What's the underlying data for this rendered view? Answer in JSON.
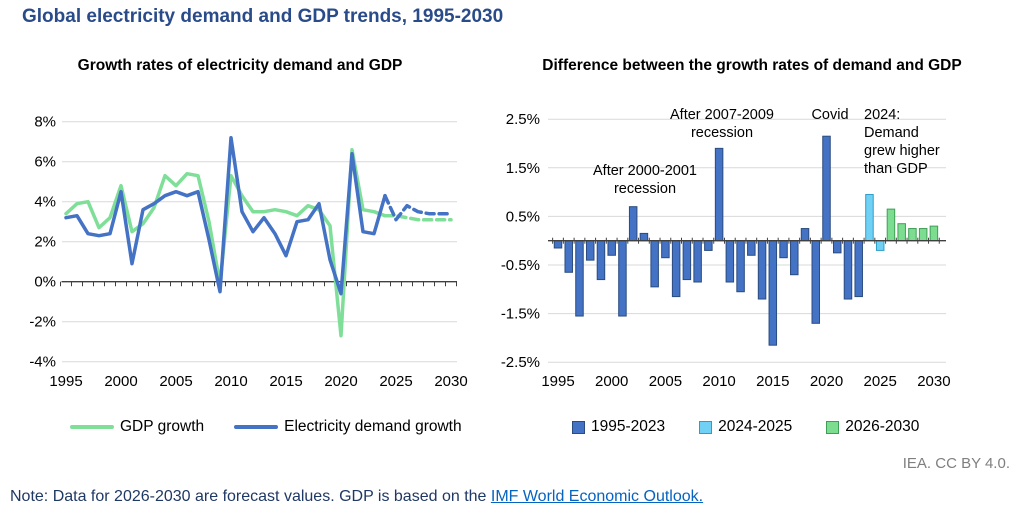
{
  "page": {
    "title": "Global electricity demand and GDP trends, 1995-2030",
    "attribution": "IEA. CC BY 4.0.",
    "note_prefix": "Note: Data for 2026-2030 are forecast values. GDP is based on the ",
    "note_link": "IMF World Economic Outlook."
  },
  "colors": {
    "title": "#2A4B8A",
    "text": "#000000",
    "grid": "#D9D9D9",
    "axis": "#404040",
    "gdp_line": "#7FDF99",
    "demand_line": "#4472C4",
    "bar_past": "#4472C4",
    "bar_past_border": "#2B4C7E",
    "bar_estimate": "#70D1F5",
    "bar_estimate_border": "#2D9EC7",
    "bar_forecast": "#7CDD90",
    "bar_forecast_border": "#3F9E55",
    "attribution": "#7F7F7F",
    "note": "#1F3864",
    "link": "#0563C1"
  },
  "left_chart": {
    "subtitle": "Growth rates of electricity demand and GDP",
    "legend": [
      {
        "label": "GDP growth",
        "color_key": "gdp_line"
      },
      {
        "label": "Electricity demand growth",
        "color_key": "demand_line"
      }
    ],
    "chart_data": {
      "type": "line",
      "x": [
        1995,
        1996,
        1997,
        1998,
        1999,
        2000,
        2001,
        2002,
        2003,
        2004,
        2005,
        2006,
        2007,
        2008,
        2009,
        2010,
        2011,
        2012,
        2013,
        2014,
        2015,
        2016,
        2017,
        2018,
        2019,
        2020,
        2021,
        2022,
        2023,
        2024,
        2025,
        2026,
        2027,
        2028,
        2029,
        2030
      ],
      "series": [
        {
          "name": "GDP growth",
          "values": [
            3.4,
            3.9,
            4.0,
            2.7,
            3.2,
            4.8,
            2.5,
            2.9,
            3.7,
            5.3,
            4.8,
            5.4,
            5.3,
            3.0,
            -0.1,
            5.3,
            4.3,
            3.5,
            3.5,
            3.6,
            3.5,
            3.3,
            3.8,
            3.6,
            2.8,
            -2.7,
            6.6,
            3.6,
            3.5,
            3.3,
            3.3,
            3.2,
            3.1,
            3.1,
            3.1,
            3.1
          ]
        },
        {
          "name": "Electricity demand growth",
          "values": [
            3.2,
            3.3,
            2.4,
            2.3,
            2.4,
            4.5,
            0.9,
            3.6,
            3.9,
            4.3,
            4.5,
            4.3,
            4.5,
            2.1,
            -0.5,
            7.2,
            3.5,
            2.5,
            3.2,
            2.4,
            1.3,
            3.0,
            3.1,
            3.9,
            1.1,
            -0.6,
            6.4,
            2.5,
            2.4,
            4.3,
            3.1,
            3.8,
            3.5,
            3.4,
            3.4,
            3.4
          ]
        }
      ],
      "ylim": [
        -4,
        8
      ],
      "yticks": {
        "values": [
          8,
          6,
          4,
          2,
          0,
          -2,
          -4
        ],
        "labels": [
          "8%",
          "6%",
          "4%",
          "2%",
          "0%",
          "-2%",
          "-4%"
        ]
      },
      "xticks": [
        1995,
        2000,
        2005,
        2010,
        2015,
        2020,
        2025,
        2030
      ],
      "forecast_start": 2024,
      "forecast_style": "dashed",
      "grid": true,
      "legend_position": "bottom"
    }
  },
  "right_chart": {
    "subtitle": "Difference between the growth rates of demand and GDP",
    "legend": [
      {
        "label": "1995-2023",
        "color_key": "bar_past",
        "border_key": "bar_past_border"
      },
      {
        "label": "2024-2025",
        "color_key": "bar_estimate",
        "border_key": "bar_estimate_border"
      },
      {
        "label": "2026-2030",
        "color_key": "bar_forecast",
        "border_key": "bar_forecast_border"
      }
    ],
    "annotations": [
      {
        "id": "after-2000-2001-recession",
        "text": "After 2000-2001\nrecession"
      },
      {
        "id": "after-2007-2009-recession",
        "text": "After 2007-2009\nrecession"
      },
      {
        "id": "covid",
        "text": "Covid"
      },
      {
        "id": "demand-2024",
        "text": "2024:\nDemand\ngrew higher\nthan GDP"
      }
    ],
    "chart_data": {
      "type": "bar",
      "x": [
        1995,
        1996,
        1997,
        1998,
        1999,
        2000,
        2001,
        2002,
        2003,
        2004,
        2005,
        2006,
        2007,
        2008,
        2009,
        2010,
        2011,
        2012,
        2013,
        2014,
        2015,
        2016,
        2017,
        2018,
        2019,
        2020,
        2021,
        2022,
        2023,
        2024,
        2025,
        2026,
        2027,
        2028,
        2029,
        2030
      ],
      "values": [
        -0.15,
        -0.65,
        -1.55,
        -0.4,
        -0.8,
        -0.3,
        -1.55,
        0.7,
        0.15,
        -0.95,
        -0.35,
        -1.15,
        -0.8,
        -0.85,
        -0.2,
        1.9,
        -0.85,
        -1.05,
        -0.3,
        -1.2,
        -2.15,
        -0.35,
        -0.7,
        0.25,
        -1.7,
        2.15,
        -0.25,
        -1.2,
        -1.15,
        0.95,
        -0.2,
        0.65,
        0.35,
        0.25,
        0.25,
        0.3
      ],
      "periods": [
        {
          "label": "1995-2023",
          "start": 1995,
          "end": 2023,
          "fill_key": "bar_past",
          "stroke_key": "bar_past_border"
        },
        {
          "label": "2024-2025",
          "start": 2024,
          "end": 2025,
          "fill_key": "bar_estimate",
          "stroke_key": "bar_estimate_border"
        },
        {
          "label": "2026-2030",
          "start": 2026,
          "end": 2030,
          "fill_key": "bar_forecast",
          "stroke_key": "bar_forecast_border"
        }
      ],
      "ylim": [
        -2.5,
        2.5
      ],
      "yticks": {
        "values": [
          2.5,
          1.5,
          0.5,
          -0.5,
          -1.5,
          -2.5
        ],
        "labels": [
          "2.5%",
          "1.5%",
          "0.5%",
          "-0.5%",
          "-1.5%",
          "-2.5%"
        ]
      },
      "xticks": [
        1995,
        2000,
        2005,
        2010,
        2015,
        2020,
        2025,
        2030
      ],
      "grid": true,
      "legend_position": "bottom"
    }
  }
}
